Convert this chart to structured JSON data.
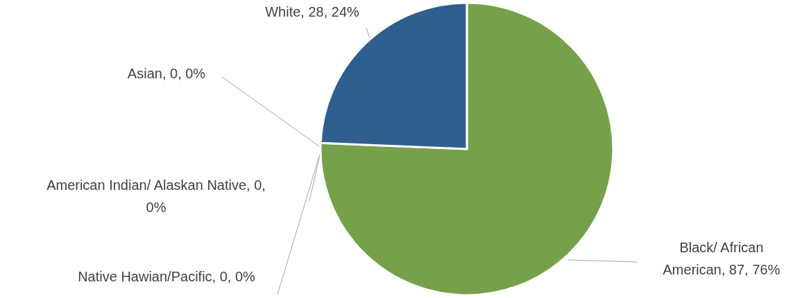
{
  "chart_data": {
    "type": "pie",
    "categories": [
      "Black/ African American",
      "Native Hawian/Pacific",
      "American Indian/ Alaskan Native",
      "Asian",
      "White"
    ],
    "values": [
      87,
      0,
      0,
      0,
      28
    ],
    "colors": [
      "#77a04b",
      "#ffc000",
      "#a5a5a5",
      "#ed7d31",
      "#2e5f8e"
    ],
    "value_labels": [
      ", 87, 76%",
      ", 0, 0%",
      ", 0, 0%",
      ", 0, 0%",
      ", 28, 24%"
    ]
  }
}
